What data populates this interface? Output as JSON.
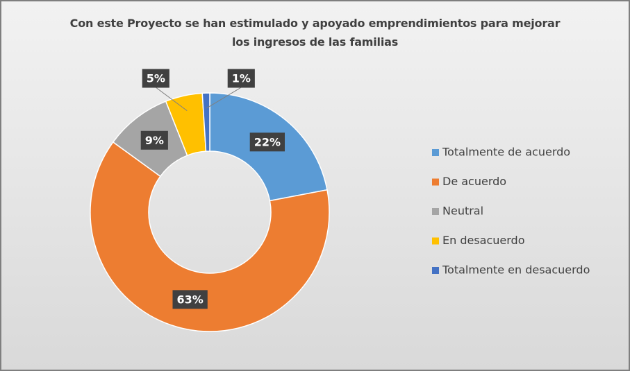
{
  "chart_data": {
    "type": "donut",
    "title": "Con este Proyecto se han estimulado y apoyado emprendimientos para mejorar los ingresos de las familias",
    "categories": [
      "Totalmente de acuerdo",
      "De acuerdo",
      "Neutral",
      "En desacuerdo",
      "Totalmente en desacuerdo"
    ],
    "values": [
      22,
      63,
      9,
      5,
      1
    ],
    "value_labels": [
      "22%",
      "63%",
      "9%",
      "5%",
      "1%"
    ],
    "colors": [
      "#5b9bd5",
      "#ed7d31",
      "#a5a5a5",
      "#ffc000",
      "#4472c4"
    ],
    "legend": "right"
  }
}
